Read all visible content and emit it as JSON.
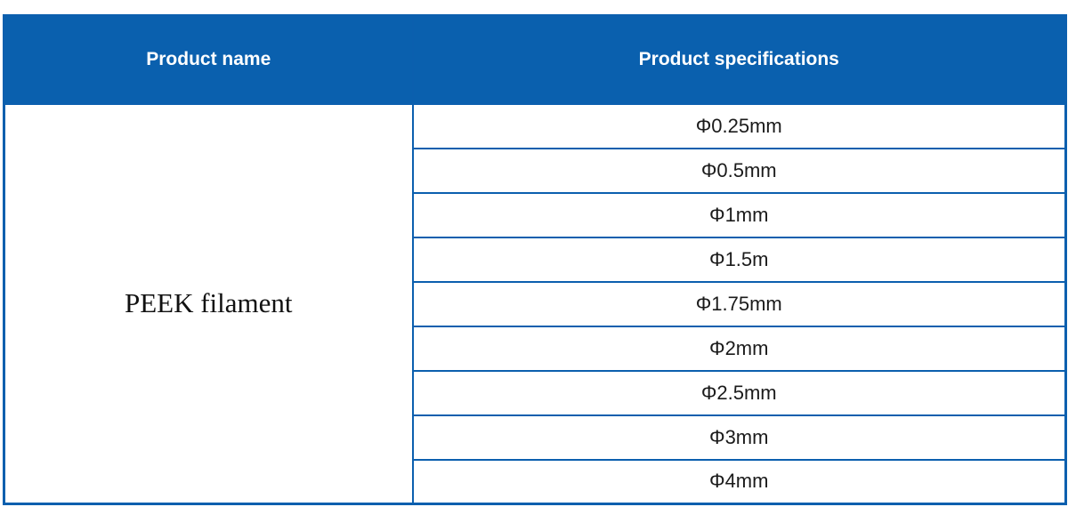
{
  "table": {
    "headers": {
      "product_name_label": "Product name",
      "product_specifications_label": "Product specifications"
    },
    "product_name": "PEEK filament",
    "specifications": [
      "Φ0.25mm",
      "Φ0.5mm",
      "Φ1mm",
      "Φ1.5m",
      "Φ1.75mm",
      "Φ2mm",
      "Φ2.5mm",
      "Φ3mm",
      "Φ4mm"
    ]
  },
  "colors": {
    "header_bg": "#0A60AE",
    "border": "#0B5FAE",
    "header_text": "#FFFFFF",
    "cell_text": "#1B1B1B"
  }
}
